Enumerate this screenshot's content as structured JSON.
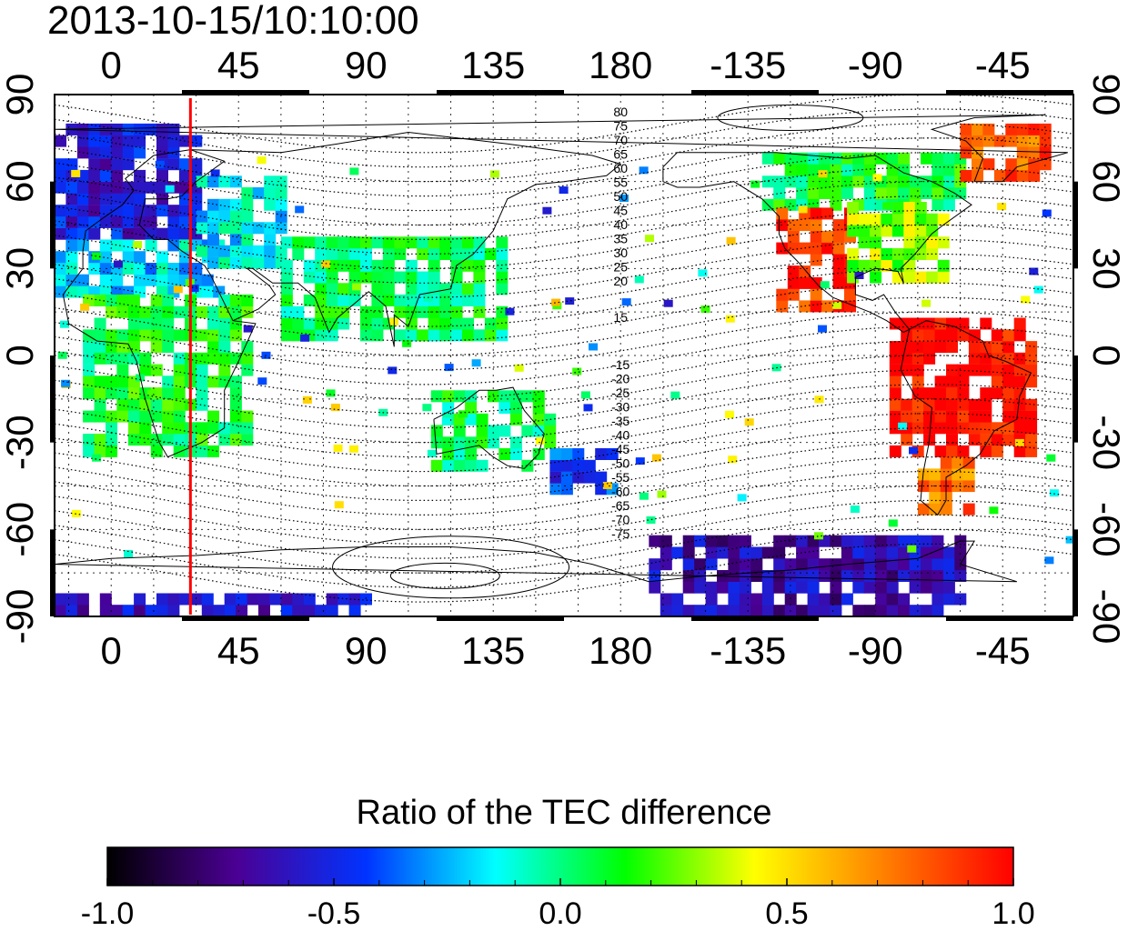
{
  "title": "2013-10-15/10:10:00",
  "map": {
    "lon_ticks_top": [
      "0",
      "45",
      "90",
      "135",
      "180",
      "-135",
      "-90",
      "-45"
    ],
    "lon_ticks_bottom": [
      "0",
      "45",
      "90",
      "135",
      "180",
      "-135",
      "-90",
      "-45"
    ],
    "lat_ticks_left": [
      "90",
      "60",
      "30",
      "0",
      "-30",
      "-60",
      "-90"
    ],
    "lat_ticks_right": [
      "90",
      "60",
      "30",
      "0",
      "-30",
      "-60",
      "-90"
    ],
    "marker_longitude": 28,
    "marker_color": "#ff0000",
    "contour_labels_north": [
      "80",
      "75",
      "70",
      "65",
      "60",
      "55",
      "50",
      "45",
      "40",
      "35",
      "30",
      "25",
      "20",
      "15"
    ],
    "contour_labels_south": [
      "-15",
      "-20",
      "-25",
      "-30",
      "-35",
      "-40",
      "-45",
      "-50",
      "-55",
      "-60",
      "-65",
      "-70",
      "-75"
    ]
  },
  "colorbar": {
    "title": "Ratio of the TEC difference",
    "min": -1.0,
    "max": 1.0,
    "tick_labels": [
      "-1.0",
      "-0.5",
      "0.0",
      "0.5",
      "1.0"
    ],
    "colors": [
      "#000000",
      "#4b0094",
      "#0033ff",
      "#00ffff",
      "#00ff00",
      "#ffff00",
      "#ff8000",
      "#ff0000"
    ]
  },
  "chart_data": {
    "type": "heatmap",
    "title": "2013-10-15/10:10:00",
    "xlim": [
      -20,
      340
    ],
    "ylim": [
      -90,
      90
    ],
    "grid": true,
    "legend": "bottom colorbar",
    "regions": [
      {
        "lon": [
          -20,
          30
        ],
        "lat": [
          40,
          80
        ],
        "value": -0.55
      },
      {
        "lon": [
          -20,
          40
        ],
        "lat": [
          20,
          40
        ],
        "value": -0.2
      },
      {
        "lon": [
          30,
          60
        ],
        "lat": [
          30,
          60
        ],
        "value": -0.15
      },
      {
        "lon": [
          -10,
          50
        ],
        "lat": [
          -35,
          20
        ],
        "value": 0.1
      },
      {
        "lon": [
          60,
          140
        ],
        "lat": [
          5,
          40
        ],
        "value": 0.05
      },
      {
        "lon": [
          113,
          155
        ],
        "lat": [
          -40,
          -12
        ],
        "value": 0.05
      },
      {
        "lon": [
          155,
          178
        ],
        "lat": [
          -48,
          -35
        ],
        "value": -0.45
      },
      {
        "lon": [
          -130,
          -60
        ],
        "lat": [
          50,
          70
        ],
        "value": 0.1
      },
      {
        "lon": [
          -125,
          -100
        ],
        "lat": [
          15,
          50
        ],
        "value": 0.9
      },
      {
        "lon": [
          -100,
          -65
        ],
        "lat": [
          25,
          50
        ],
        "value": 0.3
      },
      {
        "lon": [
          -85,
          -35
        ],
        "lat": [
          -35,
          10
        ],
        "value": 1.0
      },
      {
        "lon": [
          -75,
          -55
        ],
        "lat": [
          -55,
          -35
        ],
        "value": 0.75
      },
      {
        "lon": [
          -60,
          -30
        ],
        "lat": [
          60,
          80
        ],
        "value": 0.8
      },
      {
        "lon": [
          -170,
          -60
        ],
        "lat": [
          -90,
          -65
        ],
        "value": -0.65
      },
      {
        "lon": [
          -20,
          90
        ],
        "lat": [
          -90,
          -83
        ],
        "value": -0.6
      }
    ]
  }
}
